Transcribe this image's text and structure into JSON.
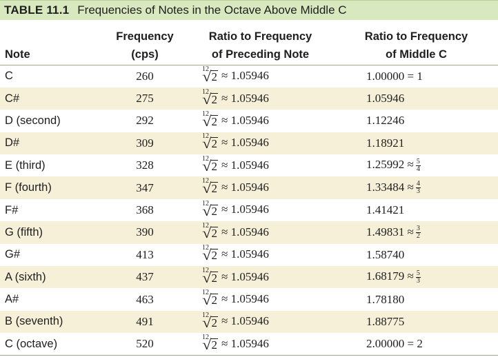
{
  "table": {
    "number": "TABLE 11.1",
    "caption": "Frequencies of Notes in the Octave Above Middle C",
    "headers": {
      "note": "Note",
      "freq_line1": "Frequency",
      "freq_line2": "(cps)",
      "ratio_prev_line1": "Ratio to Frequency",
      "ratio_prev_line2": "of Preceding Note",
      "ratio_mid_line1": "Ratio to Frequency",
      "ratio_mid_line2": "of Middle C"
    },
    "root_index": "12",
    "root_radicand": "2",
    "ratio_text": "≈ 1.05946",
    "rows": [
      {
        "note": "C",
        "freq": "260",
        "mid": "1.00000 = 1"
      },
      {
        "note": "C#",
        "freq": "275",
        "mid": "1.05946"
      },
      {
        "note": "D (second)",
        "freq": "292",
        "mid": "1.12246"
      },
      {
        "note": "D#",
        "freq": "309",
        "mid": "1.18921"
      },
      {
        "note": "E (third)",
        "freq": "328",
        "mid": "1.25992 ≈",
        "frac_num": "5",
        "frac_den": "4"
      },
      {
        "note": "F (fourth)",
        "freq": "347",
        "mid": "1.33484 ≈",
        "frac_num": "4",
        "frac_den": "3"
      },
      {
        "note": "F#",
        "freq": "368",
        "mid": "1.41421"
      },
      {
        "note": "G (fifth)",
        "freq": "390",
        "mid": "1.49831 ≈",
        "frac_num": "3",
        "frac_den": "2"
      },
      {
        "note": "G#",
        "freq": "413",
        "mid": "1.58740"
      },
      {
        "note": "A (sixth)",
        "freq": "437",
        "mid": "1.68179 ≈",
        "frac_num": "5",
        "frac_den": "3"
      },
      {
        "note": "A#",
        "freq": "463",
        "mid": "1.78180"
      },
      {
        "note": "B (seventh)",
        "freq": "491",
        "mid": "1.88775"
      },
      {
        "note": "C (octave)",
        "freq": "520",
        "mid": "2.00000 = 2"
      }
    ]
  }
}
